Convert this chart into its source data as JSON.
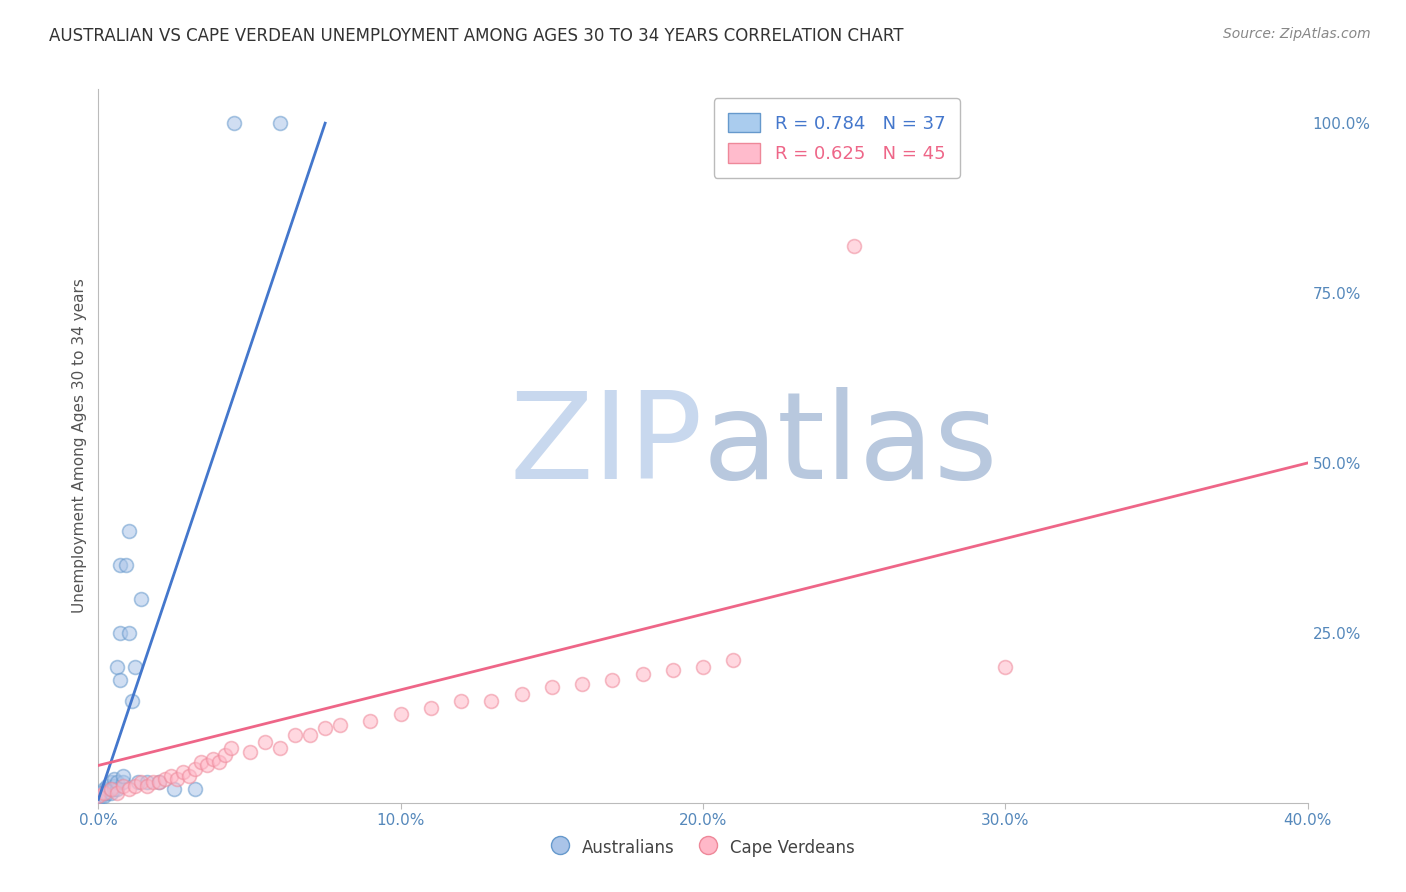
{
  "title": "AUSTRALIAN VS CAPE VERDEAN UNEMPLOYMENT AMONG AGES 30 TO 34 YEARS CORRELATION CHART",
  "source": "Source: ZipAtlas.com",
  "ylabel": "Unemployment Among Ages 30 to 34 years",
  "xlim": [
    0.0,
    0.4
  ],
  "ylim": [
    0.0,
    1.05
  ],
  "xticks": [
    0.0,
    0.1,
    0.2,
    0.3,
    0.4
  ],
  "xtick_labels": [
    "0.0%",
    "10.0%",
    "20.0%",
    "30.0%",
    "40.0%"
  ],
  "yticks_right": [
    0.25,
    0.5,
    0.75,
    1.0
  ],
  "ytick_labels_right": [
    "25.0%",
    "50.0%",
    "75.0%",
    "100.0%"
  ],
  "background_color": "#ffffff",
  "watermark_zip_color": "#c8d8ee",
  "watermark_atlas_color": "#b8c8de",
  "legend_R_blue": "R = 0.784",
  "legend_N_blue": "N = 37",
  "legend_R_pink": "R = 0.625",
  "legend_N_pink": "N = 45",
  "blue_fill_color": "#aac4e8",
  "blue_edge_color": "#6699cc",
  "pink_fill_color": "#ffb8c8",
  "pink_edge_color": "#ee8899",
  "blue_line_color": "#4477cc",
  "pink_line_color": "#ee6688",
  "axis_tick_color": "#5588bb",
  "title_color": "#333333",
  "blue_scatter_x": [
    0.0,
    0.0,
    0.0,
    0.001,
    0.001,
    0.002,
    0.002,
    0.003,
    0.003,
    0.003,
    0.004,
    0.004,
    0.004,
    0.005,
    0.005,
    0.005,
    0.006,
    0.006,
    0.006,
    0.007,
    0.007,
    0.007,
    0.008,
    0.008,
    0.009,
    0.01,
    0.01,
    0.011,
    0.012,
    0.013,
    0.014,
    0.016,
    0.02,
    0.025,
    0.032,
    0.045,
    0.06
  ],
  "blue_scatter_y": [
    0.005,
    0.01,
    0.015,
    0.01,
    0.015,
    0.01,
    0.02,
    0.015,
    0.02,
    0.025,
    0.015,
    0.02,
    0.03,
    0.02,
    0.025,
    0.035,
    0.02,
    0.03,
    0.2,
    0.18,
    0.25,
    0.35,
    0.03,
    0.04,
    0.35,
    0.4,
    0.25,
    0.15,
    0.2,
    0.03,
    0.3,
    0.03,
    0.03,
    0.02,
    0.02,
    1.0,
    1.0
  ],
  "pink_scatter_x": [
    0.0,
    0.002,
    0.004,
    0.006,
    0.008,
    0.01,
    0.012,
    0.014,
    0.016,
    0.018,
    0.02,
    0.022,
    0.024,
    0.026,
    0.028,
    0.03,
    0.032,
    0.034,
    0.036,
    0.038,
    0.04,
    0.042,
    0.044,
    0.05,
    0.055,
    0.06,
    0.065,
    0.07,
    0.075,
    0.08,
    0.09,
    0.1,
    0.11,
    0.12,
    0.13,
    0.14,
    0.15,
    0.16,
    0.17,
    0.18,
    0.19,
    0.2,
    0.21,
    0.25,
    0.3
  ],
  "pink_scatter_y": [
    0.01,
    0.015,
    0.02,
    0.015,
    0.025,
    0.02,
    0.025,
    0.03,
    0.025,
    0.03,
    0.03,
    0.035,
    0.04,
    0.035,
    0.045,
    0.04,
    0.05,
    0.06,
    0.055,
    0.065,
    0.06,
    0.07,
    0.08,
    0.075,
    0.09,
    0.08,
    0.1,
    0.1,
    0.11,
    0.115,
    0.12,
    0.13,
    0.14,
    0.15,
    0.15,
    0.16,
    0.17,
    0.175,
    0.18,
    0.19,
    0.195,
    0.2,
    0.21,
    0.82,
    0.2
  ],
  "blue_line_x": [
    0.0,
    0.075
  ],
  "blue_line_y": [
    0.005,
    1.0
  ],
  "pink_line_x": [
    0.0,
    0.4
  ],
  "pink_line_y": [
    0.055,
    0.5
  ],
  "grid_color": "#dddddd",
  "legend_box_blue": "#aaccee",
  "legend_box_pink": "#ffbbcc"
}
